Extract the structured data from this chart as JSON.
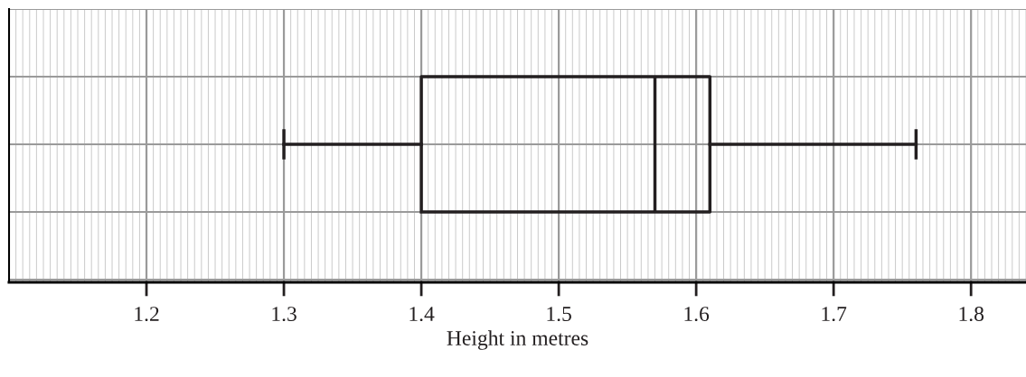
{
  "chart_data": {
    "type": "box",
    "orientation": "horizontal",
    "xlabel": "Height in metres",
    "categories": [
      null
    ],
    "boxes": [
      {
        "low": 1.3,
        "q1": 1.4,
        "median": 1.57,
        "q3": 1.61,
        "high": 1.76
      }
    ],
    "color": "#231f20",
    "xlim": [
      1.1,
      1.84
    ],
    "xticks": [
      1.2,
      1.3,
      1.4,
      1.5,
      1.6,
      1.7,
      1.8
    ],
    "grid": true,
    "tick_labels": "x"
  }
}
